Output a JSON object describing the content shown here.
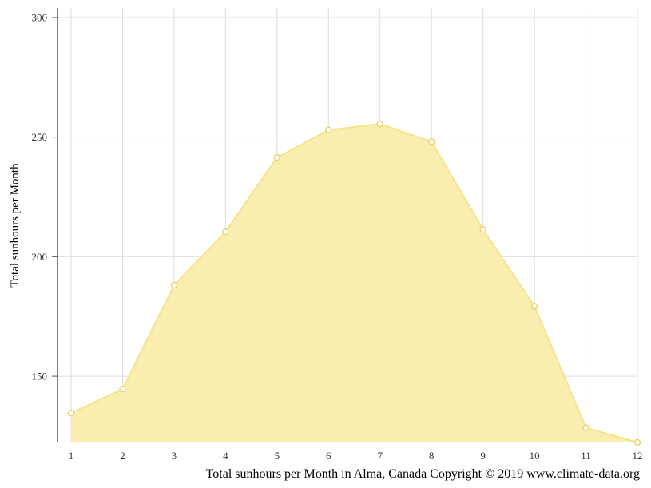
{
  "chart_data": {
    "type": "area",
    "title": "",
    "xlabel": "",
    "ylabel": "Total sunhours per Month",
    "caption": "Total sunhours per Month in Alma, Canada Copyright © 2019 www.climate-data.org",
    "x": [
      1,
      2,
      3,
      4,
      5,
      6,
      7,
      8,
      9,
      10,
      11,
      12
    ],
    "x_tick_labels": [
      "1",
      "2",
      "3",
      "4",
      "5",
      "6",
      "7",
      "8",
      "9",
      "10",
      "11",
      "12"
    ],
    "series": [
      {
        "values": [
          134.6,
          144.6,
          188.1,
          210.4,
          241.5,
          253.0,
          255.5,
          248.1,
          211.4,
          179.3,
          128.5,
          122.3
        ]
      }
    ],
    "y_ticks": [
      150,
      200,
      250,
      300
    ],
    "y_tick_labels": [
      "150",
      "200",
      "250",
      "300"
    ],
    "ylim": [
      122.3,
      304
    ],
    "grid": true,
    "colors": {
      "fill": "#f9eeb0",
      "line": "#f7e38a",
      "marker_fill": "#ffffff",
      "marker_stroke": "#e6cf55",
      "grid": "#dddddd",
      "axis": "#555555"
    }
  }
}
